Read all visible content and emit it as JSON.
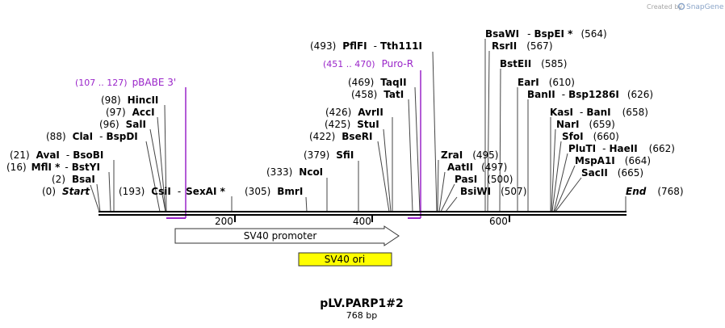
{
  "watermark": {
    "created_by": "Created by",
    "brand": "SnapGene"
  },
  "map": {
    "title": "pLV.PARP1#2",
    "length_label": "768 bp",
    "length": 768,
    "ticks": [
      {
        "label": "200",
        "pos": 200
      },
      {
        "label": "400",
        "pos": 400
      },
      {
        "label": "600",
        "pos": 600
      }
    ],
    "ends": {
      "start": {
        "pos_text": "(0)",
        "name": "Start"
      },
      "end": {
        "pos_text": "(768)",
        "name": "End"
      }
    },
    "primers": [
      {
        "range_text": "(107 .. 127)",
        "name": "pBABE 3'"
      },
      {
        "range_text": "(451 .. 470)",
        "name": "Puro-R"
      }
    ],
    "features": [
      {
        "name": "SV40 promoter",
        "type": "promoter",
        "color": "#ffffff"
      },
      {
        "name": "SV40 ori",
        "type": "rep_origin",
        "color": "#ffff00"
      }
    ],
    "sites": [
      {
        "pos_text": "(2)",
        "names": [
          "BsaI"
        ]
      },
      {
        "pos_text": "(16)",
        "names": [
          "MflI *",
          "BstYI"
        ]
      },
      {
        "pos_text": "(21)",
        "names": [
          "AvaI",
          "BsoBI"
        ]
      },
      {
        "pos_text": "(88)",
        "names": [
          "ClaI",
          "BspDI"
        ]
      },
      {
        "pos_text": "(96)",
        "names": [
          "SalI"
        ]
      },
      {
        "pos_text": "(97)",
        "names": [
          "AccI"
        ]
      },
      {
        "pos_text": "(98)",
        "names": [
          "HincII"
        ]
      },
      {
        "pos_text": "(193)",
        "names": [
          "CsiI",
          "SexAI *"
        ]
      },
      {
        "pos_text": "(305)",
        "names": [
          "BmrI"
        ]
      },
      {
        "pos_text": "(333)",
        "names": [
          "NcoI"
        ]
      },
      {
        "pos_text": "(379)",
        "names": [
          "SfiI"
        ]
      },
      {
        "pos_text": "(422)",
        "names": [
          "BseRI"
        ]
      },
      {
        "pos_text": "(425)",
        "names": [
          "StuI"
        ]
      },
      {
        "pos_text": "(426)",
        "names": [
          "AvrII"
        ]
      },
      {
        "pos_text": "(458)",
        "names": [
          "TatI"
        ]
      },
      {
        "pos_text": "(469)",
        "names": [
          "TaqII"
        ]
      },
      {
        "pos_text": "(493)",
        "names": [
          "PflFI",
          "Tth111I"
        ]
      },
      {
        "pos_text": "(495)",
        "names": [
          "ZraI"
        ]
      },
      {
        "pos_text": "(497)",
        "names": [
          "AatII"
        ]
      },
      {
        "pos_text": "(500)",
        "names": [
          "PasI"
        ]
      },
      {
        "pos_text": "(507)",
        "names": [
          "BsiWI"
        ]
      },
      {
        "pos_text": "(564)",
        "names": [
          "BsaWI",
          "BspEI *"
        ]
      },
      {
        "pos_text": "(567)",
        "names": [
          "RsrII"
        ]
      },
      {
        "pos_text": "(585)",
        "names": [
          "BstEII"
        ]
      },
      {
        "pos_text": "(610)",
        "names": [
          "EarI"
        ]
      },
      {
        "pos_text": "(626)",
        "names": [
          "BanII",
          "Bsp1286I"
        ]
      },
      {
        "pos_text": "(658)",
        "names": [
          "KasI",
          "BanI"
        ]
      },
      {
        "pos_text": "(659)",
        "names": [
          "NarI"
        ]
      },
      {
        "pos_text": "(660)",
        "names": [
          "SfoI"
        ]
      },
      {
        "pos_text": "(662)",
        "names": [
          "PluTI",
          "HaeII"
        ]
      },
      {
        "pos_text": "(664)",
        "names": [
          "MspA1I"
        ]
      },
      {
        "pos_text": "(665)",
        "names": [
          "SacII"
        ]
      }
    ]
  }
}
